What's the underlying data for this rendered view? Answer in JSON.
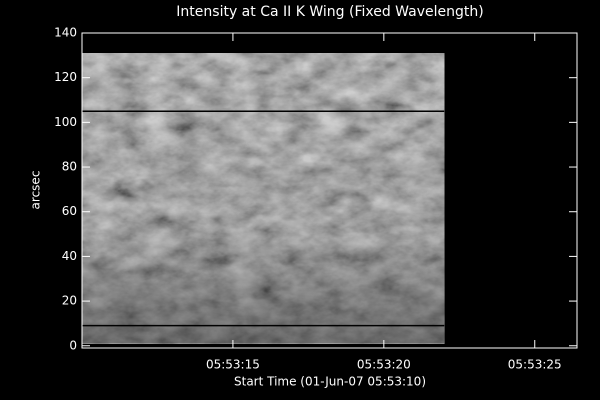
{
  "chart_data": {
    "type": "image",
    "title": "Intensity at Ca II K Wing (Fixed Wavelength)",
    "x_label": "Start Time (01-Jun-07 05:53:10)",
    "y_label": "arcsec",
    "xlim": [
      10,
      26.4
    ],
    "ylim": [
      -1,
      140
    ],
    "xticks": [
      {
        "value": 15,
        "label": "05:53:15"
      },
      {
        "value": 20,
        "label": "05:53:20"
      },
      {
        "value": 25,
        "label": "05:53:25"
      }
    ],
    "yticks": [
      0,
      20,
      40,
      60,
      80,
      100,
      120,
      140
    ],
    "x_extent": [
      10,
      22
    ],
    "y_extent": [
      1,
      131
    ],
    "hlines": [
      105,
      9
    ],
    "color": "#ffffff"
  }
}
